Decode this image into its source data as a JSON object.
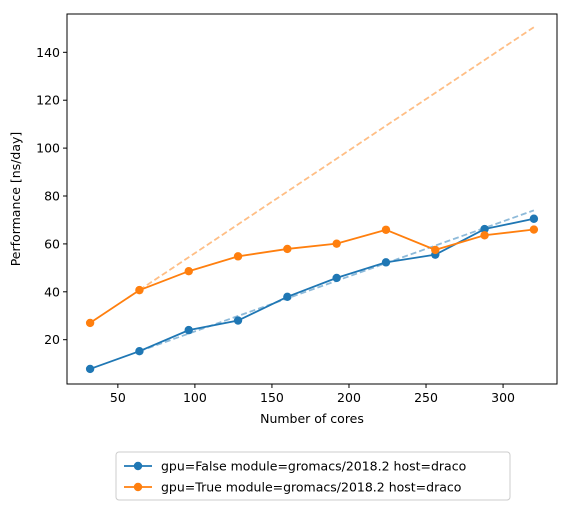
{
  "chart_data": {
    "type": "line",
    "xlabel": "Number of cores",
    "ylabel": "Performance [ns/day]",
    "xlim": [
      17,
      335
    ],
    "ylim": [
      1.5,
      156
    ],
    "xticks": [
      50,
      100,
      150,
      200,
      250,
      300
    ],
    "yticks": [
      20,
      40,
      60,
      80,
      100,
      120,
      140
    ],
    "grid": false,
    "legend_position": "bottom-center-outside",
    "series": [
      {
        "name": "gpu=False module=gromacs/2018.2 host=draco",
        "color": "#1f77b4",
        "x": [
          32,
          64,
          96,
          128,
          160,
          192,
          224,
          256,
          288,
          320
        ],
        "y": [
          7.8,
          15.2,
          24.0,
          28.0,
          37.9,
          45.8,
          52.3,
          55.5,
          66.2,
          70.5
        ]
      },
      {
        "name": "gpu=True module=gromacs/2018.2 host=draco",
        "color": "#ff7f0e",
        "x": [
          32,
          64,
          96,
          128,
          160,
          192,
          224,
          256,
          288,
          320
        ],
        "y": [
          27.0,
          40.7,
          48.6,
          54.8,
          57.9,
          60.1,
          65.9,
          57.5,
          63.6,
          66.0
        ]
      }
    ],
    "reference_lines": [
      {
        "color": "#1f77b4",
        "x": [
          64,
          320
        ],
        "y": [
          15.2,
          74.0
        ]
      },
      {
        "color": "#ff7f0e",
        "x": [
          64,
          320
        ],
        "y": [
          40.7,
          150.5
        ]
      }
    ]
  }
}
